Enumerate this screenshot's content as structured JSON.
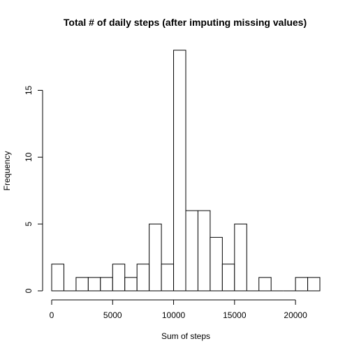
{
  "chart_data": {
    "type": "bar",
    "title": "Total # of daily steps (after imputing missing values)",
    "xlabel": "Sum of steps",
    "ylabel": "Frequency",
    "bin_width": 1000,
    "bins": [
      {
        "start": 0,
        "end": 1000,
        "count": 2
      },
      {
        "start": 1000,
        "end": 2000,
        "count": 0
      },
      {
        "start": 2000,
        "end": 3000,
        "count": 1
      },
      {
        "start": 3000,
        "end": 4000,
        "count": 1
      },
      {
        "start": 4000,
        "end": 5000,
        "count": 1
      },
      {
        "start": 5000,
        "end": 6000,
        "count": 2
      },
      {
        "start": 6000,
        "end": 7000,
        "count": 1
      },
      {
        "start": 7000,
        "end": 8000,
        "count": 2
      },
      {
        "start": 8000,
        "end": 9000,
        "count": 5
      },
      {
        "start": 9000,
        "end": 10000,
        "count": 2
      },
      {
        "start": 10000,
        "end": 11000,
        "count": 18
      },
      {
        "start": 11000,
        "end": 12000,
        "count": 6
      },
      {
        "start": 12000,
        "end": 13000,
        "count": 6
      },
      {
        "start": 13000,
        "end": 14000,
        "count": 4
      },
      {
        "start": 14000,
        "end": 15000,
        "count": 2
      },
      {
        "start": 15000,
        "end": 16000,
        "count": 5
      },
      {
        "start": 16000,
        "end": 17000,
        "count": 0
      },
      {
        "start": 17000,
        "end": 18000,
        "count": 1
      },
      {
        "start": 18000,
        "end": 19000,
        "count": 0
      },
      {
        "start": 19000,
        "end": 20000,
        "count": 0
      },
      {
        "start": 20000,
        "end": 21000,
        "count": 1
      },
      {
        "start": 21000,
        "end": 22000,
        "count": 1
      }
    ],
    "x_ticks": [
      0,
      5000,
      10000,
      15000,
      20000
    ],
    "y_ticks": [
      0,
      5,
      10,
      15
    ],
    "xlim": [
      0,
      22000
    ],
    "ylim": [
      0,
      18
    ],
    "grid": false,
    "legend": "none"
  }
}
